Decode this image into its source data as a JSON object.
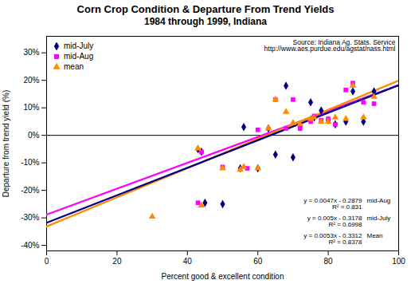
{
  "chart_data": {
    "type": "scatter",
    "title": "Corn Crop Condition & Departure From Trend Yields",
    "subtitle": "1984 through 1999, Indiana",
    "xlabel": "Percent good & excellent condition",
    "ylabel": "Departure from trend yield (%)",
    "source": "Source: Indiana Ag. Stats. Service\nhttp://www.aes.purdue.edu/agstat/nass.html",
    "annotations": [
      {
        "equation": "y = 0.0047x - 0.2879\nR² = 0.831",
        "label": "mid-Aug"
      },
      {
        "equation": "y = 0.005x - 0.3178\nR² = 0.6998",
        "label": "mid-July"
      },
      {
        "equation": "y = 0.0053x - 0.3312\nR² = 0.8378",
        "label": "Mean"
      }
    ],
    "xlim": [
      0,
      100
    ],
    "ylim": [
      -0.42,
      0.36
    ],
    "xticks": [
      0,
      20,
      40,
      60,
      80,
      100
    ],
    "yticks": [
      {
        "value": -0.4,
        "label": "-40%"
      },
      {
        "value": -0.3,
        "label": "-30%"
      },
      {
        "value": -0.2,
        "label": "-20%"
      },
      {
        "value": -0.1,
        "label": "-10%"
      },
      {
        "value": 0.0,
        "label": "0%"
      },
      {
        "value": 0.1,
        "label": "10%"
      },
      {
        "value": 0.2,
        "label": "20%"
      },
      {
        "value": 0.3,
        "label": "30%"
      }
    ],
    "grid": false,
    "legend": "upper left",
    "series": [
      {
        "name": "mid-July",
        "type": "scatter",
        "color": "#000080",
        "marker": "diamond",
        "x": [
          43,
          44,
          45,
          50,
          55,
          56,
          60,
          63,
          65,
          68,
          70,
          72,
          75,
          76,
          78,
          80,
          82,
          85,
          87,
          90,
          93
        ],
        "values": [
          -0.05,
          -0.06,
          -0.245,
          -0.25,
          -0.12,
          0.03,
          -0.12,
          0.025,
          -0.07,
          0.18,
          -0.08,
          0.03,
          0.12,
          0.065,
          0.09,
          0.055,
          0.04,
          0.05,
          0.16,
          0.05,
          0.16
        ]
      },
      {
        "name": "mid-Aug",
        "type": "scatter",
        "color": "#FF00FF",
        "marker": "square",
        "x": [
          43,
          44,
          50,
          57,
          60,
          65,
          68,
          70,
          72,
          75,
          76,
          78,
          80,
          82,
          85,
          87,
          90,
          93
        ],
        "values": [
          -0.245,
          -0.06,
          -0.115,
          -0.12,
          0.02,
          0.13,
          0.025,
          0.13,
          0.025,
          0.05,
          0.07,
          0.055,
          0.06,
          0.04,
          0.165,
          0.19,
          0.12,
          0.115
        ]
      },
      {
        "name": "mean",
        "type": "scatter",
        "color": "#FF8C00",
        "marker": "triangle",
        "x": [
          30,
          43,
          44,
          50,
          55,
          56,
          60,
          63,
          65,
          68,
          70,
          72,
          75,
          76,
          78,
          80,
          82,
          85,
          87,
          90,
          93
        ],
        "values": [
          -0.295,
          -0.048,
          -0.255,
          -0.12,
          -0.125,
          -0.115,
          -0.12,
          0.025,
          0.13,
          0.085,
          0.045,
          0.04,
          0.06,
          0.065,
          0.05,
          0.05,
          0.065,
          0.06,
          0.18,
          0.065,
          0.14
        ]
      },
      {
        "type": "line",
        "color": "#FF00FF",
        "line_style": "solid",
        "x": [
          0,
          100
        ],
        "values": [
          -0.2879,
          0.1821
        ]
      },
      {
        "type": "line",
        "color": "#FF8C00",
        "line_style": "solid",
        "x": [
          0,
          100
        ],
        "values": [
          -0.3312,
          0.1988
        ]
      },
      {
        "type": "line",
        "color": "#000080",
        "line_style": "solid",
        "x": [
          0,
          100
        ],
        "values": [
          -0.3178,
          0.1822
        ]
      }
    ]
  }
}
